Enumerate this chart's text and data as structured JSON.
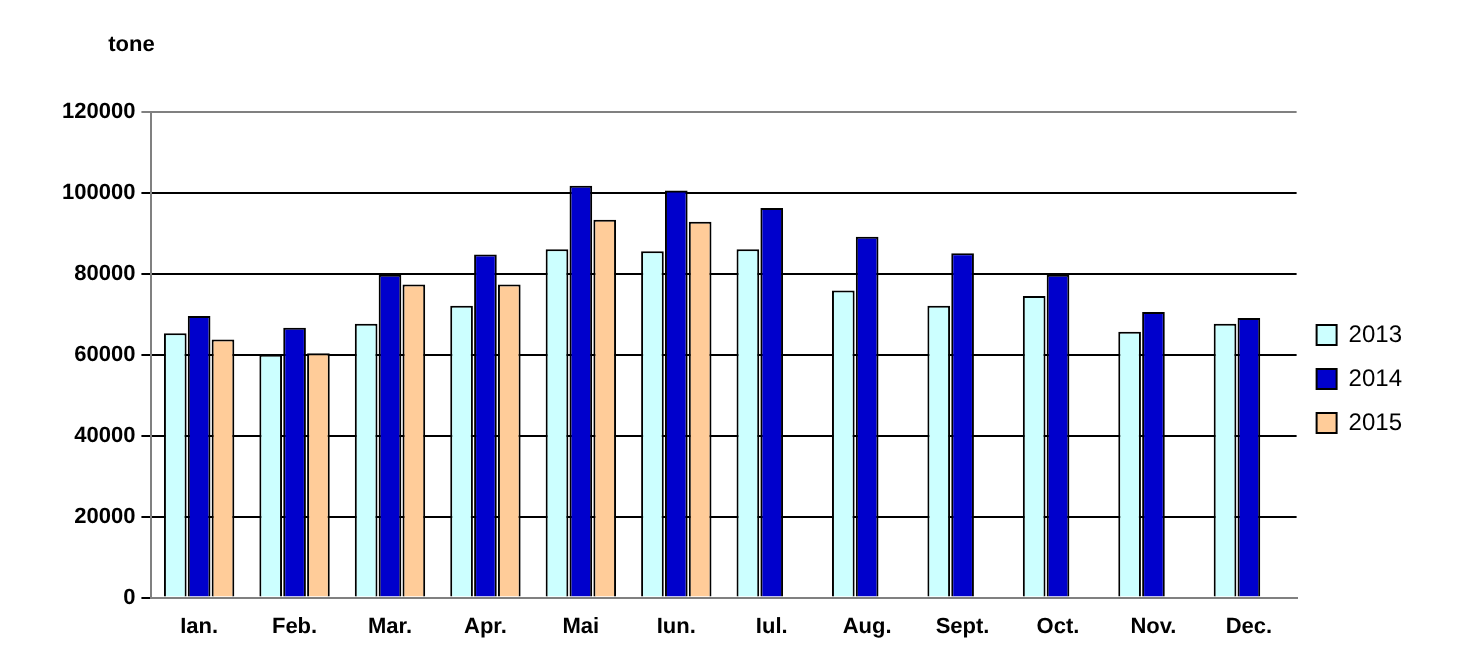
{
  "chart_data": {
    "type": "bar",
    "ylabel": "tone",
    "categories": [
      "Ian.",
      "Feb.",
      "Mar.",
      "Apr.",
      "Mai",
      "Iun.",
      "Iul.",
      "Aug.",
      "Sept.",
      "Oct.",
      "Nov.",
      "Dec."
    ],
    "series": [
      {
        "name": "2013",
        "color": "#ccffff",
        "values": [
          65300,
          60000,
          67700,
          72100,
          86100,
          85600,
          86100,
          75900,
          72100,
          74500,
          65700,
          67700
        ]
      },
      {
        "name": "2014",
        "color": "#0000cc",
        "values": [
          69600,
          66700,
          79800,
          84800,
          101800,
          100600,
          96300,
          89200,
          85100,
          79800,
          70600,
          69100
        ]
      },
      {
        "name": "2015",
        "color": "#ffcc99",
        "values": [
          63800,
          60400,
          77400,
          77400,
          93400,
          92900,
          null,
          null,
          null,
          null,
          null,
          null
        ]
      }
    ],
    "ylim": [
      0,
      120000
    ],
    "yticks": [
      0,
      20000,
      40000,
      60000,
      80000,
      100000,
      120000
    ],
    "grid": "y",
    "legend": "right"
  }
}
